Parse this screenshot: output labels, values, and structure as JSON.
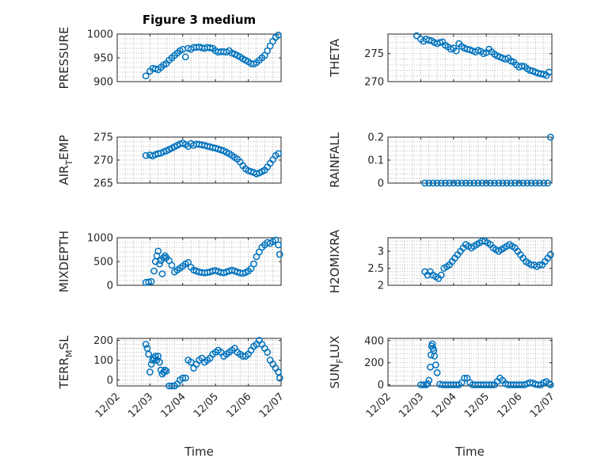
{
  "figure": {
    "title": "Figure 3 medium"
  },
  "chart_data": [
    {
      "type": "scatter",
      "ylabel": "PRESSURE",
      "title": "Figure 3 medium",
      "xlim": [
        "12/02",
        "12/07"
      ],
      "ylim": [
        900,
        1000
      ],
      "yticks": [
        900,
        950,
        1000
      ],
      "x": [
        "12/02 21:00",
        "12/03 00:00",
        "12/03 02:00",
        "12/03 04:00",
        "12/03 06:00",
        "12/03 08:00",
        "12/03 10:00",
        "12/03 12:00",
        "12/03 14:00",
        "12/03 16:00",
        "12/03 18:00",
        "12/03 20:00",
        "12/03 22:00",
        "12/04 00:00",
        "12/04 02:00",
        "12/04 04:00",
        "12/04 06:00",
        "12/04 08:00",
        "12/04 10:00",
        "12/04 12:00",
        "12/04 14:00",
        "12/04 16:00",
        "12/04 18:00",
        "12/04 20:00",
        "12/04 22:00",
        "12/05 00:00",
        "12/05 02:00",
        "12/05 04:00",
        "12/05 06:00",
        "12/05 08:00",
        "12/05 10:00",
        "12/05 12:00",
        "12/05 14:00",
        "12/05 16:00",
        "12/05 18:00",
        "12/05 20:00",
        "12/05 22:00",
        "12/06 00:00",
        "12/06 02:00",
        "12/06 04:00",
        "12/06 06:00",
        "12/06 08:00",
        "12/06 10:00",
        "12/06 12:00",
        "12/06 14:00",
        "12/06 16:00",
        "12/06 18:00",
        "12/06 20:00",
        "12/06 22:00"
      ],
      "values": [
        912,
        922,
        928,
        927,
        925,
        930,
        935,
        938,
        945,
        950,
        955,
        960,
        965,
        968,
        952,
        970,
        968,
        972,
        972,
        973,
        971,
        970,
        972,
        971,
        970,
        965,
        962,
        963,
        963,
        962,
        965,
        960,
        958,
        955,
        952,
        948,
        945,
        942,
        938,
        937,
        940,
        945,
        950,
        955,
        965,
        975,
        985,
        993,
        998
      ]
    },
    {
      "type": "scatter",
      "ylabel": "THETA",
      "xlim": [
        "12/02",
        "12/07"
      ],
      "ylim": [
        270,
        278.5
      ],
      "yticks": [
        270,
        275
      ],
      "x": [
        "12/02 21:00",
        "12/03 00:00",
        "12/03 02:00",
        "12/03 04:00",
        "12/03 06:00",
        "12/03 08:00",
        "12/03 10:00",
        "12/03 12:00",
        "12/03 14:00",
        "12/03 16:00",
        "12/03 18:00",
        "12/03 20:00",
        "12/03 22:00",
        "12/04 00:00",
        "12/04 02:00",
        "12/04 04:00",
        "12/04 06:00",
        "12/04 08:00",
        "12/04 10:00",
        "12/04 12:00",
        "12/04 14:00",
        "12/04 16:00",
        "12/04 18:00",
        "12/04 20:00",
        "12/04 22:00",
        "12/05 00:00",
        "12/05 02:00",
        "12/05 04:00",
        "12/05 06:00",
        "12/05 08:00",
        "12/05 10:00",
        "12/05 12:00",
        "12/05 14:00",
        "12/05 16:00",
        "12/05 18:00",
        "12/05 20:00",
        "12/05 22:00",
        "12/06 00:00",
        "12/06 02:00",
        "12/06 04:00",
        "12/06 06:00",
        "12/06 08:00",
        "12/06 10:00",
        "12/06 12:00",
        "12/06 14:00",
        "12/06 16:00",
        "12/06 18:00",
        "12/06 20:00",
        "12/06 22:00"
      ],
      "values": [
        278.2,
        277.6,
        277.2,
        277.6,
        277.4,
        277.3,
        277.0,
        276.8,
        277.0,
        277.1,
        276.5,
        276.2,
        275.8,
        276.0,
        275.5,
        276.8,
        276.3,
        276.0,
        275.8,
        275.7,
        275.5,
        275.3,
        275.6,
        275.4,
        275.0,
        275.2,
        275.8,
        275.3,
        274.9,
        274.6,
        274.4,
        274.2,
        274.0,
        274.2,
        273.7,
        273.5,
        273.0,
        272.6,
        272.8,
        272.7,
        272.3,
        272.0,
        271.9,
        271.7,
        271.5,
        271.4,
        271.3,
        271.1,
        271.7
      ]
    },
    {
      "type": "scatter",
      "ylabel": "AIR_TEMP",
      "ylabel_parts": {
        "main": "AIR",
        "sub": "T",
        "rest": "EMP"
      },
      "xlim": [
        "12/02",
        "12/07"
      ],
      "ylim": [
        265,
        275
      ],
      "yticks": [
        265,
        270,
        275
      ],
      "x": [
        "12/02 21:00",
        "12/03 00:00",
        "12/03 02:00",
        "12/03 04:00",
        "12/03 06:00",
        "12/03 08:00",
        "12/03 10:00",
        "12/03 12:00",
        "12/03 14:00",
        "12/03 16:00",
        "12/03 18:00",
        "12/03 20:00",
        "12/03 22:00",
        "12/04 00:00",
        "12/04 02:00",
        "12/04 04:00",
        "12/04 06:00",
        "12/04 08:00",
        "12/04 10:00",
        "12/04 12:00",
        "12/04 14:00",
        "12/04 16:00",
        "12/04 18:00",
        "12/04 20:00",
        "12/04 22:00",
        "12/05 00:00",
        "12/05 02:00",
        "12/05 04:00",
        "12/05 06:00",
        "12/05 08:00",
        "12/05 10:00",
        "12/05 12:00",
        "12/05 14:00",
        "12/05 16:00",
        "12/05 18:00",
        "12/05 20:00",
        "12/05 22:00",
        "12/06 00:00",
        "12/06 02:00",
        "12/06 04:00",
        "12/06 06:00",
        "12/06 08:00",
        "12/06 10:00",
        "12/06 12:00",
        "12/06 14:00",
        "12/06 16:00",
        "12/06 18:00",
        "12/06 20:00",
        "12/06 22:00"
      ],
      "values": [
        271.0,
        271.1,
        270.9,
        271.2,
        271.4,
        271.5,
        271.8,
        272.0,
        272.3,
        272.6,
        272.9,
        273.2,
        273.5,
        273.7,
        273.4,
        273.0,
        273.6,
        273.2,
        273.5,
        273.4,
        273.3,
        273.2,
        273.0,
        272.9,
        272.7,
        272.6,
        272.4,
        272.2,
        272.0,
        271.7,
        271.4,
        271.0,
        270.6,
        270.2,
        269.6,
        268.8,
        268.1,
        267.7,
        267.5,
        267.3,
        267.0,
        267.2,
        267.5,
        267.8,
        268.5,
        269.3,
        270.1,
        271.0,
        271.4
      ]
    },
    {
      "type": "scatter",
      "ylabel": "RAINFALL",
      "xlim": [
        "12/02",
        "12/07"
      ],
      "ylim": [
        0,
        0.2
      ],
      "yticks": [
        0,
        0.1,
        0.2
      ],
      "x": [
        "12/03 03:00",
        "12/03 06:00",
        "12/03 09:00",
        "12/03 12:00",
        "12/03 15:00",
        "12/03 18:00",
        "12/03 21:00",
        "12/04 00:00",
        "12/04 03:00",
        "12/04 06:00",
        "12/04 09:00",
        "12/04 12:00",
        "12/04 15:00",
        "12/04 18:00",
        "12/04 21:00",
        "12/05 00:00",
        "12/05 03:00",
        "12/05 06:00",
        "12/05 09:00",
        "12/05 12:00",
        "12/05 15:00",
        "12/05 18:00",
        "12/05 21:00",
        "12/06 00:00",
        "12/06 03:00",
        "12/06 06:00",
        "12/06 09:00",
        "12/06 12:00",
        "12/06 15:00",
        "12/06 18:00",
        "12/06 21:00",
        "12/06 23:00"
      ],
      "values": [
        0,
        0,
        0,
        0,
        0,
        0,
        0,
        0,
        0,
        0,
        0,
        0,
        0,
        0,
        0,
        0,
        0,
        0,
        0,
        0,
        0,
        0,
        0,
        0,
        0,
        0,
        0,
        0,
        0,
        0,
        0,
        0.2
      ]
    },
    {
      "type": "scatter",
      "ylabel": "MIXDEPTH",
      "xlim": [
        "12/02",
        "12/07"
      ],
      "ylim": [
        0,
        1000
      ],
      "yticks": [
        0,
        500,
        1000
      ],
      "x": [
        "12/02 21:00",
        "12/02 23:00",
        "12/03 01:00",
        "12/03 03:00",
        "12/03 04:00",
        "12/03 05:00",
        "12/03 06:00",
        "12/03 07:00",
        "12/03 08:00",
        "12/03 09:00",
        "12/03 10:00",
        "12/03 11:00",
        "12/03 12:00",
        "12/03 14:00",
        "12/03 16:00",
        "12/03 18:00",
        "12/03 20:00",
        "12/03 22:00",
        "12/04 00:00",
        "12/04 02:00",
        "12/04 04:00",
        "12/04 06:00",
        "12/04 08:00",
        "12/04 10:00",
        "12/04 12:00",
        "12/04 14:00",
        "12/04 16:00",
        "12/04 18:00",
        "12/04 20:00",
        "12/04 22:00",
        "12/05 00:00",
        "12/05 02:00",
        "12/05 04:00",
        "12/05 06:00",
        "12/05 08:00",
        "12/05 10:00",
        "12/05 12:00",
        "12/05 14:00",
        "12/05 16:00",
        "12/05 18:00",
        "12/05 20:00",
        "12/05 22:00",
        "12/06 00:00",
        "12/06 02:00",
        "12/06 04:00",
        "12/06 06:00",
        "12/06 08:00",
        "12/06 10:00",
        "12/06 12:00",
        "12/06 14:00",
        "12/06 16:00",
        "12/06 18:00",
        "12/06 20:00",
        "12/06 22:00",
        "12/06 23:00"
      ],
      "values": [
        60,
        70,
        80,
        300,
        500,
        620,
        720,
        450,
        520,
        240,
        580,
        620,
        580,
        520,
        420,
        280,
        320,
        360,
        400,
        450,
        480,
        380,
        320,
        300,
        280,
        270,
        260,
        270,
        280,
        300,
        310,
        290,
        270,
        260,
        280,
        300,
        320,
        300,
        280,
        260,
        250,
        270,
        300,
        350,
        450,
        600,
        700,
        800,
        850,
        900,
        880,
        920,
        950,
        850,
        650
      ]
    },
    {
      "type": "scatter",
      "ylabel": "H2OMIXRA",
      "xlim": [
        "12/02",
        "12/07"
      ],
      "ylim": [
        2,
        3.4
      ],
      "yticks": [
        2,
        2.5,
        3
      ],
      "x": [
        "12/03 03:00",
        "12/03 05:00",
        "12/03 07:00",
        "12/03 09:00",
        "12/03 11:00",
        "12/03 13:00",
        "12/03 15:00",
        "12/03 17:00",
        "12/03 19:00",
        "12/03 21:00",
        "12/03 23:00",
        "12/04 01:00",
        "12/04 03:00",
        "12/04 05:00",
        "12/04 07:00",
        "12/04 09:00",
        "12/04 11:00",
        "12/04 13:00",
        "12/04 15:00",
        "12/04 17:00",
        "12/04 19:00",
        "12/04 21:00",
        "12/04 23:00",
        "12/05 01:00",
        "12/05 03:00",
        "12/05 05:00",
        "12/05 07:00",
        "12/05 09:00",
        "12/05 11:00",
        "12/05 13:00",
        "12/05 15:00",
        "12/05 17:00",
        "12/05 19:00",
        "12/05 21:00",
        "12/05 23:00",
        "12/06 01:00",
        "12/06 03:00",
        "12/06 05:00",
        "12/06 07:00",
        "12/06 09:00",
        "12/06 11:00",
        "12/06 13:00",
        "12/06 15:00",
        "12/06 17:00",
        "12/06 19:00",
        "12/06 21:00",
        "12/06 23:00"
      ],
      "values": [
        2.4,
        2.3,
        2.4,
        2.3,
        2.25,
        2.2,
        2.3,
        2.5,
        2.55,
        2.6,
        2.7,
        2.8,
        2.9,
        3.0,
        3.1,
        3.2,
        3.15,
        3.1,
        3.15,
        3.2,
        3.25,
        3.3,
        3.3,
        3.25,
        3.2,
        3.1,
        3.05,
        3.0,
        3.05,
        3.1,
        3.15,
        3.2,
        3.15,
        3.1,
        3.0,
        2.9,
        2.8,
        2.7,
        2.65,
        2.6,
        2.6,
        2.55,
        2.6,
        2.6,
        2.7,
        2.8,
        2.9
      ]
    },
    {
      "type": "scatter",
      "ylabel": "TERR_MSL",
      "ylabel_parts": {
        "main": "TERR",
        "sub": "M",
        "rest": "SL"
      },
      "xlim": [
        "12/02",
        "12/07"
      ],
      "ylim": [
        -30,
        210
      ],
      "yticks": [
        0,
        100,
        200
      ],
      "x": [
        "12/02 21:00",
        "12/02 22:00",
        "12/02 23:00",
        "12/03 00:00",
        "12/03 01:00",
        "12/03 02:00",
        "12/03 03:00",
        "12/03 04:00",
        "12/03 05:00",
        "12/03 06:00",
        "12/03 07:00",
        "12/03 08:00",
        "12/03 09:00",
        "12/03 10:00",
        "12/03 11:00",
        "12/03 12:00",
        "12/03 14:00",
        "12/03 16:00",
        "12/03 18:00",
        "12/03 20:00",
        "12/03 22:00",
        "12/04 00:00",
        "12/04 02:00",
        "12/04 04:00",
        "12/04 06:00",
        "12/04 08:00",
        "12/04 10:00",
        "12/04 12:00",
        "12/04 14:00",
        "12/04 16:00",
        "12/04 18:00",
        "12/04 20:00",
        "12/04 22:00",
        "12/05 00:00",
        "12/05 02:00",
        "12/05 04:00",
        "12/05 06:00",
        "12/05 08:00",
        "12/05 10:00",
        "12/05 12:00",
        "12/05 14:00",
        "12/05 16:00",
        "12/05 18:00",
        "12/05 20:00",
        "12/05 22:00",
        "12/06 00:00",
        "12/06 02:00",
        "12/06 04:00",
        "12/06 06:00",
        "12/06 08:00",
        "12/06 10:00",
        "12/06 12:00",
        "12/06 14:00",
        "12/06 16:00",
        "12/06 18:00",
        "12/06 20:00",
        "12/06 22:00",
        "12/06 23:00"
      ],
      "values": [
        180,
        160,
        130,
        40,
        80,
        100,
        110,
        120,
        100,
        120,
        90,
        50,
        30,
        40,
        50,
        45,
        -30,
        -30,
        -30,
        -20,
        0,
        10,
        10,
        100,
        90,
        60,
        80,
        100,
        110,
        90,
        100,
        110,
        130,
        140,
        150,
        140,
        120,
        130,
        140,
        150,
        160,
        140,
        130,
        120,
        120,
        130,
        150,
        170,
        180,
        200,
        180,
        160,
        140,
        100,
        80,
        60,
        40,
        10
      ]
    },
    {
      "type": "scatter",
      "ylabel": "SUN_FLUX",
      "ylabel_parts": {
        "main": "SUN",
        "sub": "F",
        "rest": "LUX"
      },
      "xlim": [
        "12/02",
        "12/07"
      ],
      "ylim": [
        -10,
        420
      ],
      "yticks": [
        0,
        200,
        400
      ],
      "x": [
        "12/03 00:00",
        "12/03 02:00",
        "12/03 04:00",
        "12/03 05:00",
        "12/03 06:00",
        "12/03 07:00",
        "12/03 07:30",
        "12/03 08:00",
        "12/03 08:30",
        "12/03 09:00",
        "12/03 09:30",
        "12/03 10:00",
        "12/03 11:00",
        "12/03 12:00",
        "12/03 14:00",
        "12/03 16:00",
        "12/03 18:00",
        "12/03 20:00",
        "12/03 22:00",
        "12/04 00:00",
        "12/04 02:00",
        "12/04 04:00",
        "12/04 06:00",
        "12/04 08:00",
        "12/04 10:00",
        "12/04 12:00",
        "12/04 14:00",
        "12/04 16:00",
        "12/04 18:00",
        "12/04 20:00",
        "12/04 22:00",
        "12/05 00:00",
        "12/05 02:00",
        "12/05 04:00",
        "12/05 06:00",
        "12/05 08:00",
        "12/05 10:00",
        "12/05 12:00",
        "12/05 14:00",
        "12/05 16:00",
        "12/05 18:00",
        "12/05 20:00",
        "12/05 22:00",
        "12/06 00:00",
        "12/06 02:00",
        "12/06 04:00",
        "12/06 06:00",
        "12/06 08:00",
        "12/06 10:00",
        "12/06 12:00",
        "12/06 14:00",
        "12/06 16:00",
        "12/06 18:00",
        "12/06 20:00",
        "12/06 22:00",
        "12/06 23:00"
      ],
      "values": [
        0,
        0,
        0,
        10,
        40,
        160,
        270,
        350,
        370,
        330,
        310,
        260,
        180,
        110,
        5,
        0,
        0,
        0,
        0,
        0,
        0,
        0,
        20,
        60,
        60,
        20,
        0,
        0,
        0,
        0,
        0,
        0,
        0,
        0,
        0,
        30,
        60,
        40,
        10,
        0,
        0,
        0,
        0,
        0,
        0,
        0,
        10,
        20,
        15,
        5,
        0,
        0,
        20,
        30,
        10,
        0
      ]
    }
  ],
  "axes": {
    "xticks": [
      "12/02",
      "12/03",
      "12/04",
      "12/05",
      "12/06",
      "12/07"
    ],
    "xlabel": "Time"
  }
}
